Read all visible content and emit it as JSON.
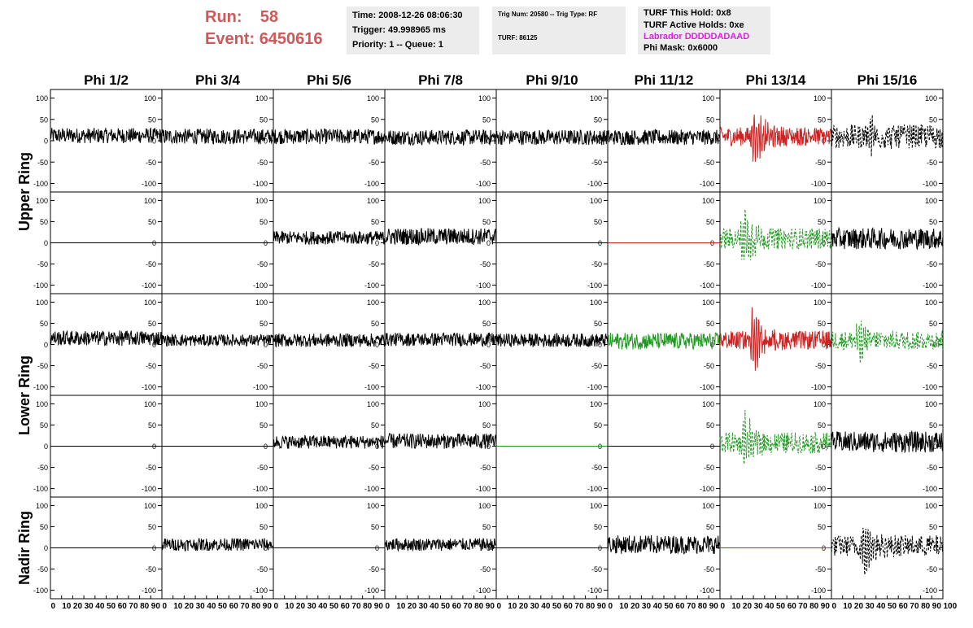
{
  "header": {
    "run_label": "Run:",
    "run_value": "58",
    "event_label": "Event:",
    "event_value": "6450616",
    "time_box": {
      "time": "Time: 2008-12-26 08:06:30",
      "trigger": "Trigger: 49.998965 ms",
      "priority": "Priority: 1 -- Queue: 1"
    },
    "trig_box": {
      "trig": "Trig Num: 20580 -- Trig Type: RF",
      "turf": "TURF: 86125"
    },
    "turf_box": {
      "hold": "TURF This Hold: 0x8",
      "active": "TURF Active Holds: 0xe",
      "labrador": "Labrador DDDDDADAAD",
      "phimask": "Phi Mask: 0x6000"
    }
  },
  "colors": {
    "header_red": "#cc5a5a",
    "box_bg": "#ececec",
    "labrador": "#e020e0",
    "trace_black": "#000000",
    "trace_red": "#cc2222",
    "trace_green": "#229922"
  },
  "columns": [
    "Phi 1/2",
    "Phi 3/4",
    "Phi 5/6",
    "Phi 7/8",
    "Phi 9/10",
    "Phi 11/12",
    "Phi 13/14",
    "Phi 15/16"
  ],
  "ring_labels": [
    "Upper Ring",
    "Lower Ring",
    "Nadir Ring"
  ],
  "y_ticks": [
    "100",
    "50",
    "0",
    "-50",
    "-100"
  ],
  "x_axis_label_text": "0 10 20 30 40 50 60 70 80 90 100",
  "x_ticks": [
    "0",
    "10",
    "20",
    "30",
    "40",
    "50",
    "60",
    "70",
    "80",
    "90",
    "100"
  ],
  "chart_data": {
    "type": "line",
    "xlim": [
      0,
      100
    ],
    "ylim": [
      -120,
      120
    ],
    "rows": [
      {
        "ring": "Upper Ring",
        "traces": [
          {
            "amp": 18,
            "offset": 12,
            "color": "black",
            "style": "solid"
          },
          {
            "amp": 18,
            "offset": 10,
            "color": "black",
            "style": "solid"
          },
          {
            "amp": 18,
            "offset": 10,
            "color": "black",
            "style": "solid"
          },
          {
            "amp": 18,
            "offset": 8,
            "color": "black",
            "style": "solid"
          },
          {
            "amp": 18,
            "offset": 8,
            "color": "black",
            "style": "solid"
          },
          {
            "amp": 18,
            "offset": 8,
            "color": "black",
            "style": "solid"
          },
          {
            "amp": 22,
            "offset": 10,
            "color": "red",
            "style": "solid",
            "pulse": 80,
            "pulse_at": 0.32
          },
          {
            "amp": 28,
            "offset": 10,
            "color": "black",
            "style": "dashed",
            "pulse": 40,
            "pulse_at": 0.35
          }
        ]
      },
      {
        "ring": "Upper Ring",
        "traces": [
          {
            "amp": 0,
            "offset": 0,
            "color": "black",
            "style": "solid"
          },
          {
            "amp": 0,
            "offset": 0,
            "color": "black",
            "style": "solid"
          },
          {
            "amp": 16,
            "offset": 12,
            "color": "black",
            "style": "solid"
          },
          {
            "amp": 20,
            "offset": 15,
            "color": "black",
            "style": "solid"
          },
          {
            "amp": 0,
            "offset": 0,
            "color": "black",
            "style": "solid"
          },
          {
            "amp": 0,
            "offset": 0,
            "color": "red",
            "style": "solid"
          },
          {
            "amp": 25,
            "offset": 10,
            "color": "green",
            "style": "dashed",
            "pulse": 80,
            "pulse_at": 0.22
          },
          {
            "amp": 25,
            "offset": 10,
            "color": "black",
            "style": "solid"
          }
        ]
      },
      {
        "ring": "Lower Ring",
        "traces": [
          {
            "amp": 18,
            "offset": 15,
            "color": "black",
            "style": "solid"
          },
          {
            "amp": 14,
            "offset": 10,
            "color": "black",
            "style": "solid"
          },
          {
            "amp": 16,
            "offset": 10,
            "color": "black",
            "style": "solid"
          },
          {
            "amp": 16,
            "offset": 12,
            "color": "black",
            "style": "solid"
          },
          {
            "amp": 16,
            "offset": 10,
            "color": "black",
            "style": "solid"
          },
          {
            "amp": 20,
            "offset": 8,
            "color": "green",
            "style": "solid"
          },
          {
            "amp": 22,
            "offset": 10,
            "color": "red",
            "style": "solid",
            "pulse": 90,
            "pulse_at": 0.3
          },
          {
            "amp": 22,
            "offset": 10,
            "color": "green",
            "style": "dashed",
            "pulse": 45,
            "pulse_at": 0.25
          }
        ]
      },
      {
        "ring": "Lower Ring",
        "traces": [
          {
            "amp": 0,
            "offset": 0,
            "color": "black",
            "style": "solid"
          },
          {
            "amp": 0,
            "offset": 0,
            "color": "black",
            "style": "solid"
          },
          {
            "amp": 16,
            "offset": 10,
            "color": "black",
            "style": "solid"
          },
          {
            "amp": 18,
            "offset": 12,
            "color": "black",
            "style": "solid"
          },
          {
            "amp": 0,
            "offset": 0,
            "color": "green",
            "style": "solid"
          },
          {
            "amp": 0,
            "offset": 0,
            "color": "black",
            "style": "solid"
          },
          {
            "amp": 25,
            "offset": 8,
            "color": "green",
            "style": "dashed",
            "pulse": 75,
            "pulse_at": 0.22
          },
          {
            "amp": 25,
            "offset": 10,
            "color": "black",
            "style": "solid"
          }
        ]
      },
      {
        "ring": "Nadir Ring",
        "traces": [
          {
            "amp": 0,
            "offset": 0,
            "color": "black",
            "style": "solid"
          },
          {
            "amp": 15,
            "offset": 8,
            "color": "black",
            "style": "solid"
          },
          {
            "amp": 0,
            "offset": 0,
            "color": "black",
            "style": "solid"
          },
          {
            "amp": 15,
            "offset": 8,
            "color": "black",
            "style": "solid"
          },
          {
            "amp": 0,
            "offset": 0,
            "color": "black",
            "style": "solid"
          },
          {
            "amp": 22,
            "offset": 8,
            "color": "black",
            "style": "solid"
          },
          {
            "amp": 0,
            "offset": 0,
            "color": "red",
            "style": "solid"
          },
          {
            "amp": 25,
            "offset": 5,
            "color": "black",
            "style": "dashed",
            "pulse": 85,
            "pulse_at": 0.3
          }
        ]
      }
    ]
  }
}
